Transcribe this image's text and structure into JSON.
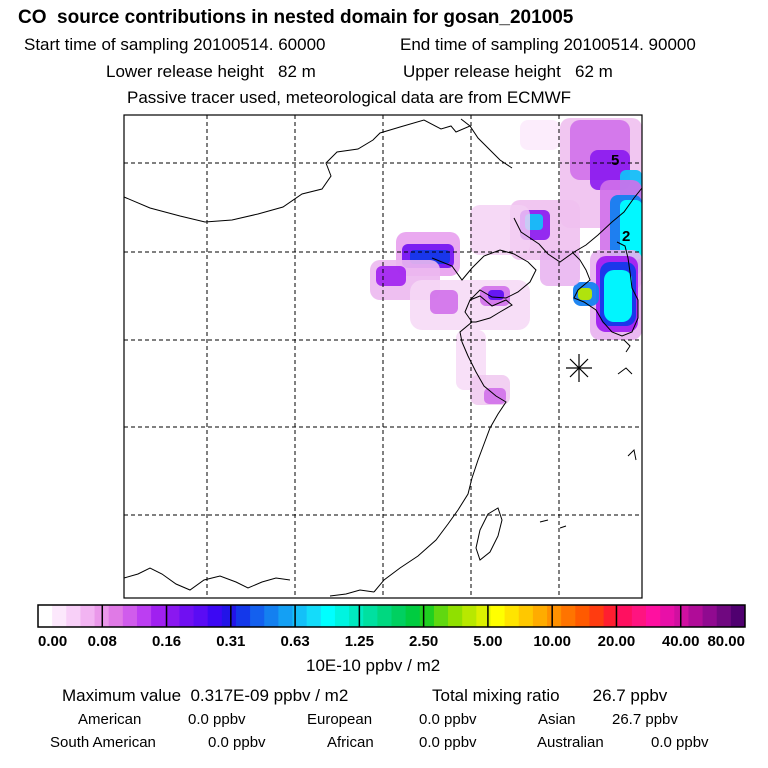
{
  "title": "CO  source contributions in nested domain for gosan_201005",
  "header": {
    "start_time": "Start time of sampling 20100514. 60000",
    "end_time": "End time of sampling 20100514. 90000",
    "lower_release": "Lower release height   82 m",
    "upper_release": "Upper release height   62 m",
    "tracer_note": "Passive tracer used, meteorological data are from ECMWF"
  },
  "map": {
    "contour_labels": [
      "5",
      "2"
    ],
    "receptor_symbol": "asterisk"
  },
  "colorbar": {
    "unit_label": "10E-10 ppbv / m2",
    "tick_labels": [
      "0.00",
      "0.08",
      "0.16",
      "0.31",
      "0.63",
      "1.25",
      "2.50",
      "5.00",
      "10.00",
      "20.00",
      "40.00",
      "80.00"
    ],
    "colors": [
      "#ffffff",
      "#fce8fc",
      "#f8d0f8",
      "#f2b4f2",
      "#ea98ea",
      "#e07ae6",
      "#d05cec",
      "#bc3ef2",
      "#a020f0",
      "#8a18f0",
      "#7010f2",
      "#5a0cf4",
      "#3c08f4",
      "#2214e8",
      "#1438ea",
      "#1460ee",
      "#1480f0",
      "#14a0f4",
      "#14c0f8",
      "#14dcfa",
      "#00ffff",
      "#00f4e0",
      "#00eac0",
      "#00e0a0",
      "#00d880",
      "#00d060",
      "#00cc40",
      "#20d020",
      "#60d810",
      "#90e000",
      "#b8e800",
      "#dcf000",
      "#ffff00",
      "#ffe400",
      "#ffc800",
      "#ffac00",
      "#ff9000",
      "#ff7400",
      "#ff5a00",
      "#ff3c10",
      "#ff1e30",
      "#ff1060",
      "#ff1480",
      "#ff10a0",
      "#e810a8",
      "#d010a0",
      "#b00c98",
      "#900a90",
      "#700880",
      "#500070"
    ]
  },
  "footer": {
    "max_value": "Maximum value  0.317E-09 ppbv / m2",
    "total_mixing": "Total mixing ratio       26.7 ppbv",
    "american": "American",
    "american_val": "0.0 ppbv",
    "european": "European",
    "european_val": "0.0 ppbv",
    "asian": "Asian",
    "asian_val": "26.7 ppbv",
    "south_american": "South American",
    "south_american_val": "0.0 ppbv",
    "african": "African",
    "african_val": "0.0 ppbv",
    "australian": "Australian",
    "australian_val": "0.0 ppbv"
  },
  "chart_data": {
    "type": "heatmap",
    "title": "CO  source contributions in nested domain for gosan_201005",
    "colorbar_label": "10E-10 ppbv / m2",
    "colorbar_ticks": [
      0.0,
      0.08,
      0.16,
      0.31,
      0.63,
      1.25,
      2.5,
      5.0,
      10.0,
      20.0,
      40.0,
      80.0
    ],
    "max_value": "0.317E-09 ppbv / m2",
    "contour_values": [
      5,
      2
    ]
  }
}
